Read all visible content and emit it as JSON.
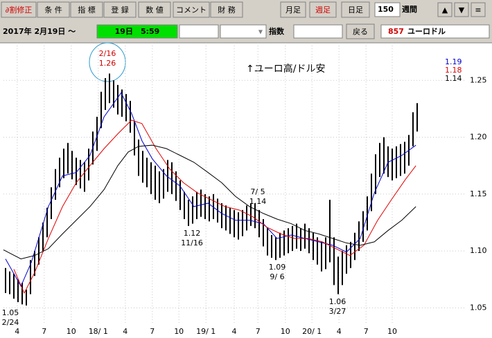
{
  "toolbar": {
    "buttons": [
      "∂割修正",
      "条 件",
      "指 標",
      "登 録",
      "数 値",
      "コメント",
      "財 務"
    ],
    "periods": [
      "月足",
      "週足",
      "日足"
    ],
    "count": "150",
    "unit": "週間",
    "arrows": [
      "▲",
      "▼",
      "≡"
    ],
    "date": "2017年 2月19日 ～",
    "time": "19日　5:59",
    "index_label": "指数",
    "back": "戻る",
    "code": "857",
    "name": "ユーロドル"
  },
  "chart_data": {
    "type": "ohlc",
    "note": "↑ユーロ高/ドル安",
    "xlim": [
      -0.5,
      99.5
    ],
    "ylim": [
      1.035,
      1.283
    ],
    "grid": true,
    "xticks": [
      {
        "value": 2.8,
        "label": "4"
      },
      {
        "value": 9.3,
        "label": "7"
      },
      {
        "value": 15.8,
        "label": "10"
      },
      {
        "value": 22.3,
        "label": "18/ 1"
      },
      {
        "value": 28.8,
        "label": "4"
      },
      {
        "value": 35.3,
        "label": "7"
      },
      {
        "value": 41.7,
        "label": "10"
      },
      {
        "value": 48.2,
        "label": "19/ 1"
      },
      {
        "value": 55,
        "label": "4"
      },
      {
        "value": 60.7,
        "label": "7"
      },
      {
        "value": 67.3,
        "label": "10"
      },
      {
        "value": 73.7,
        "label": "20/ 1"
      },
      {
        "value": 80.2,
        "label": "4"
      },
      {
        "value": 86.7,
        "label": "7"
      },
      {
        "value": 93,
        "label": "10"
      }
    ],
    "yticks": [
      1.25,
      {
        "value": 1.2,
        "label": "1.20"
      },
      1.15,
      {
        "value": 1.1,
        "label": "1.10"
      },
      1.05
    ],
    "bars": {
      "color": "#000000",
      "high": [
        1.085,
        1.082,
        1.08,
        1.075,
        1.072,
        1.066,
        1.092,
        1.1,
        1.112,
        1.125,
        1.138,
        1.156,
        1.172,
        1.182,
        1.19,
        1.195,
        1.188,
        1.182,
        1.18,
        1.178,
        1.19,
        1.205,
        1.218,
        1.24,
        1.252,
        1.256,
        1.25,
        1.246,
        1.242,
        1.238,
        1.232,
        1.214,
        1.198,
        1.188,
        1.182,
        1.178,
        1.175,
        1.17,
        1.172,
        1.18,
        1.178,
        1.17,
        1.162,
        1.152,
        1.145,
        1.148,
        1.152,
        1.154,
        1.15,
        1.148,
        1.15,
        1.146,
        1.142,
        1.14,
        1.138,
        1.136,
        1.134,
        1.136,
        1.14,
        1.142,
        1.142,
        1.136,
        1.128,
        1.12,
        1.114,
        1.112,
        1.116,
        1.118,
        1.12,
        1.122,
        1.124,
        1.12,
        1.124,
        1.12,
        1.116,
        1.112,
        1.108,
        1.112,
        1.145,
        1.112,
        1.095,
        1.1,
        1.105,
        1.108,
        1.116,
        1.126,
        1.135,
        1.148,
        1.168,
        1.185,
        1.195,
        1.2,
        1.192,
        1.19,
        1.192,
        1.194,
        1.196,
        1.202,
        1.222,
        1.23
      ],
      "low": [
        1.063,
        1.062,
        1.058,
        1.055,
        1.053,
        1.052,
        1.062,
        1.078,
        1.088,
        1.1,
        1.112,
        1.128,
        1.145,
        1.156,
        1.164,
        1.168,
        1.163,
        1.158,
        1.155,
        1.152,
        1.162,
        1.176,
        1.188,
        1.208,
        1.224,
        1.23,
        1.226,
        1.22,
        1.218,
        1.214,
        1.204,
        1.184,
        1.166,
        1.16,
        1.156,
        1.15,
        1.145,
        1.142,
        1.146,
        1.152,
        1.15,
        1.144,
        1.136,
        1.128,
        1.122,
        1.124,
        1.128,
        1.13,
        1.128,
        1.126,
        1.128,
        1.125,
        1.12,
        1.118,
        1.115,
        1.112,
        1.11,
        1.113,
        1.118,
        1.122,
        1.12,
        1.112,
        1.104,
        1.096,
        1.094,
        1.092,
        1.094,
        1.096,
        1.098,
        1.1,
        1.102,
        1.1,
        1.102,
        1.098,
        1.092,
        1.088,
        1.082,
        1.084,
        1.09,
        1.07,
        1.062,
        1.07,
        1.08,
        1.085,
        1.092,
        1.1,
        1.108,
        1.118,
        1.135,
        1.15,
        1.165,
        1.168,
        1.165,
        1.162,
        1.164,
        1.166,
        1.168,
        1.175,
        1.192,
        1.205
      ]
    },
    "series": [
      {
        "color": "#0000cc",
        "latest": 1.19,
        "x": [
          0,
          3.7,
          6.2,
          10.3,
          13.7,
          17,
          20.3,
          23.7,
          27.8,
          30.3,
          32.8,
          35.3,
          38.7,
          42,
          45.3,
          48.7,
          52,
          55.3,
          58.7,
          62,
          65.3,
          68.7,
          72,
          75.3,
          78.7,
          82,
          85.3,
          88.7,
          92,
          95.3,
          98.7
        ],
        "values": [
          1.093,
          1.069,
          1.09,
          1.139,
          1.166,
          1.169,
          1.184,
          1.218,
          1.239,
          1.221,
          1.197,
          1.181,
          1.166,
          1.157,
          1.139,
          1.142,
          1.133,
          1.127,
          1.127,
          1.124,
          1.111,
          1.114,
          1.111,
          1.108,
          1.105,
          1.099,
          1.111,
          1.151,
          1.178,
          1.184,
          1.193
        ]
      },
      {
        "color": "#e00000",
        "latest": 1.18,
        "x": [
          2,
          4.5,
          7,
          10.3,
          13.7,
          17,
          20.3,
          23.7,
          27,
          30.3,
          32.8,
          36.2,
          39.5,
          42.8,
          46.2,
          49.5,
          52.8,
          56.2,
          59.5,
          62.8,
          66.2,
          69.5,
          72.8,
          76.2,
          79.5,
          82.8,
          86.2,
          89.5,
          92.8,
          96.2,
          98.7
        ],
        "values": [
          1.084,
          1.063,
          1.081,
          1.111,
          1.139,
          1.16,
          1.175,
          1.19,
          1.203,
          1.215,
          1.212,
          1.19,
          1.172,
          1.16,
          1.151,
          1.145,
          1.139,
          1.136,
          1.13,
          1.121,
          1.115,
          1.111,
          1.111,
          1.108,
          1.102,
          1.096,
          1.105,
          1.127,
          1.145,
          1.163,
          1.175
        ]
      },
      {
        "color": "#000000",
        "latest": 1.14,
        "x": [
          -0.5,
          3.7,
          7,
          10.3,
          13.7,
          17,
          20.3,
          23.7,
          27,
          29.5,
          32,
          35.3,
          38.7,
          42,
          45.3,
          48.7,
          52,
          55.3,
          58.7,
          62,
          65.3,
          68.7,
          72,
          75.3,
          78.7,
          82,
          85.3,
          88.7,
          92,
          95.3,
          98.7
        ],
        "values": [
          1.101,
          1.093,
          1.096,
          1.102,
          1.115,
          1.127,
          1.139,
          1.154,
          1.175,
          1.187,
          1.192,
          1.193,
          1.19,
          1.184,
          1.178,
          1.169,
          1.16,
          1.148,
          1.139,
          1.133,
          1.128,
          1.124,
          1.118,
          1.115,
          1.111,
          1.107,
          1.105,
          1.108,
          1.118,
          1.127,
          1.139
        ]
      }
    ],
    "annotations": [
      {
        "date": "2/16",
        "value": 1.26
      },
      {
        "date": "11/16",
        "value": 1.12
      },
      {
        "date": "7/ 5",
        "value": 1.14
      },
      {
        "date": "9/ 6",
        "value": 1.09
      },
      {
        "date": "3/27",
        "value": 1.06
      },
      {
        "date": "2/24",
        "value": 1.05
      }
    ]
  }
}
